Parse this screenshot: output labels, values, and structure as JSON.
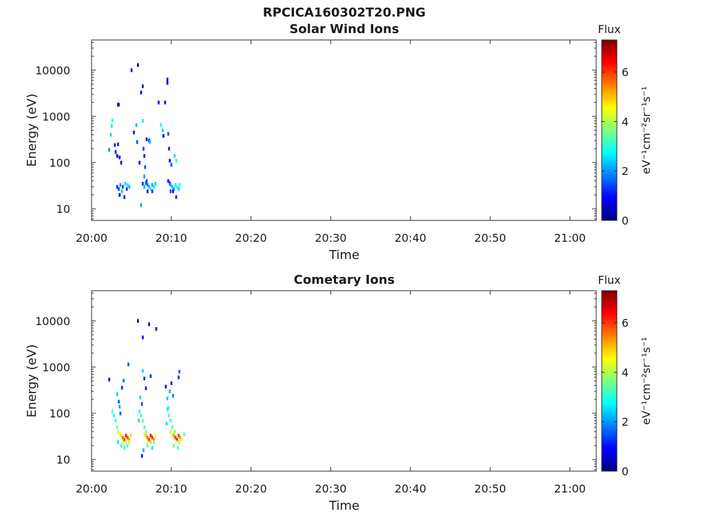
{
  "figure_title": "RPCICA160302T20.PNG",
  "colormap": [
    "#00007f",
    "#0000ff",
    "#007fff",
    "#00ffff",
    "#7fff7f",
    "#ffff00",
    "#ff7f00",
    "#ff0000",
    "#7f0000"
  ],
  "chart_data": [
    {
      "type": "heatmap",
      "title": "Solar Wind Ions",
      "xlabel": "Time",
      "ylabel": "Energy (eV)",
      "x_ticks": [
        "20:00",
        "20:10",
        "20:20",
        "20:30",
        "20:40",
        "20:50",
        "21:00"
      ],
      "xlim_minutes": [
        0,
        63.3
      ],
      "yscale": "log",
      "ylim": [
        5.6,
        45000
      ],
      "y_ticks": [
        10,
        100,
        1000,
        10000
      ],
      "y_tick_labels": [
        "10",
        "100",
        "1000",
        "10000"
      ],
      "colorbar": {
        "title": "Flux",
        "label": "eV⁻¹cm⁻²sr⁻¹s⁻¹",
        "range": [
          0,
          7.3
        ],
        "ticks": [
          0,
          2,
          4,
          6
        ],
        "tick_labels": [
          "0",
          "2",
          "4",
          "6"
        ]
      },
      "grid": false,
      "cells": [
        [
          2.2,
          190,
          1.9
        ],
        [
          2.4,
          400,
          2.4
        ],
        [
          2.5,
          620,
          2.6
        ],
        [
          2.6,
          820,
          2.9
        ],
        [
          2.9,
          240,
          1.2
        ],
        [
          3.0,
          170,
          1.0
        ],
        [
          3.3,
          250,
          1.2
        ],
        [
          3.2,
          140,
          0.8
        ],
        [
          3.5,
          130,
          0.9
        ],
        [
          3.4,
          1800,
          1.0
        ],
        [
          3.7,
          100,
          0.9
        ],
        [
          3.3,
          1800,
          0.8
        ],
        [
          3.2,
          30,
          1.3
        ],
        [
          3.4,
          27,
          1.5
        ],
        [
          3.6,
          33,
          2.0
        ],
        [
          3.8,
          24,
          2.3
        ],
        [
          3.9,
          30,
          1.4
        ],
        [
          4.2,
          35,
          2.4
        ],
        [
          4.5,
          33,
          2.6
        ],
        [
          4.7,
          30,
          2.2
        ],
        [
          3.5,
          20,
          1.0
        ],
        [
          4.1,
          18,
          1.1
        ],
        [
          4.4,
          27,
          1.3
        ],
        [
          5.0,
          10000,
          0.6
        ],
        [
          5.3,
          450,
          1.0
        ],
        [
          5.6,
          650,
          2.3
        ],
        [
          5.7,
          280,
          1.5
        ],
        [
          5.8,
          13000,
          0.7
        ],
        [
          6.0,
          100,
          0.9
        ],
        [
          6.2,
          3300,
          0.9
        ],
        [
          6.4,
          4500,
          1.0
        ],
        [
          6.4,
          800,
          2.6
        ],
        [
          6.5,
          200,
          1.3
        ],
        [
          6.6,
          140,
          1.0
        ],
        [
          6.7,
          80,
          1.5
        ],
        [
          6.6,
          50,
          2.0
        ],
        [
          6.9,
          320,
          1.0
        ],
        [
          7.2,
          300,
          1.2
        ],
        [
          7.3,
          280,
          2.3
        ],
        [
          8.4,
          2000,
          1.0
        ],
        [
          8.7,
          650,
          2.8
        ],
        [
          8.9,
          500,
          2.4
        ],
        [
          9.2,
          2000,
          1.0
        ],
        [
          9.0,
          380,
          1.0
        ],
        [
          6.2,
          12,
          2.0
        ],
        [
          6.4,
          35,
          1.2
        ],
        [
          6.6,
          30,
          2.2
        ],
        [
          6.8,
          36,
          1.5
        ],
        [
          7.0,
          33,
          1.8
        ],
        [
          7.2,
          30,
          2.4
        ],
        [
          7.4,
          27,
          2.6
        ],
        [
          7.6,
          33,
          2.2
        ],
        [
          7.8,
          30,
          2.6
        ],
        [
          8.0,
          35,
          2.4
        ],
        [
          7.0,
          24,
          1.0
        ],
        [
          7.6,
          24,
          1.3
        ],
        [
          6.9,
          40,
          1.4
        ],
        [
          9.5,
          6300,
          0.6
        ],
        [
          9.5,
          5300,
          0.8
        ],
        [
          9.6,
          420,
          1.5
        ],
        [
          9.7,
          200,
          1.1
        ],
        [
          9.8,
          110,
          1.0
        ],
        [
          10.0,
          90,
          1.5
        ],
        [
          10.4,
          140,
          2.5
        ],
        [
          10.6,
          110,
          2.8
        ],
        [
          9.6,
          40,
          1.1
        ],
        [
          9.8,
          36,
          1.3
        ],
        [
          9.9,
          33,
          2.1
        ],
        [
          10.1,
          30,
          2.4
        ],
        [
          10.3,
          27,
          2.0
        ],
        [
          10.5,
          33,
          2.7
        ],
        [
          10.7,
          30,
          3.0
        ],
        [
          10.9,
          27,
          2.4
        ],
        [
          11.0,
          33,
          2.8
        ],
        [
          10.2,
          24,
          1.0
        ],
        [
          10.6,
          18,
          1.2
        ],
        [
          9.9,
          24,
          1.4
        ]
      ]
    },
    {
      "type": "heatmap",
      "title": "Cometary Ions",
      "xlabel": "Time",
      "ylabel": "Energy (eV)",
      "x_ticks": [
        "20:00",
        "20:10",
        "20:20",
        "20:30",
        "20:40",
        "20:50",
        "21:00"
      ],
      "xlim_minutes": [
        0,
        63.3
      ],
      "yscale": "log",
      "ylim": [
        5.6,
        45000
      ],
      "y_ticks": [
        10,
        100,
        1000,
        10000
      ],
      "y_tick_labels": [
        "10",
        "100",
        "1000",
        "10000"
      ],
      "colorbar": {
        "title": "Flux",
        "label": "eV⁻¹cm⁻²sr⁻¹s⁻¹",
        "range": [
          0,
          7.3
        ],
        "ticks": [
          0,
          2,
          4,
          6
        ],
        "tick_labels": [
          "0",
          "2",
          "4",
          "6"
        ]
      },
      "grid": false,
      "cells": [
        [
          2.2,
          540,
          1.0
        ],
        [
          2.6,
          110,
          3.2
        ],
        [
          2.8,
          90,
          3.0
        ],
        [
          3.0,
          70,
          3.1
        ],
        [
          3.2,
          50,
          3.4
        ],
        [
          3.2,
          260,
          2.4
        ],
        [
          3.4,
          180,
          1.6
        ],
        [
          3.5,
          140,
          2.0
        ],
        [
          3.6,
          100,
          1.6
        ],
        [
          3.8,
          360,
          1.2
        ],
        [
          4.0,
          510,
          1.8
        ],
        [
          4.6,
          1150,
          1.6
        ],
        [
          3.3,
          40,
          4.0
        ],
        [
          3.5,
          35,
          4.6
        ],
        [
          3.7,
          33,
          4.8
        ],
        [
          3.9,
          30,
          5.6
        ],
        [
          4.1,
          27,
          6.0
        ],
        [
          4.3,
          33,
          6.3
        ],
        [
          4.5,
          30,
          5.9
        ],
        [
          4.7,
          27,
          5.4
        ],
        [
          4.9,
          33,
          4.8
        ],
        [
          3.9,
          24,
          4.2
        ],
        [
          4.3,
          24,
          4.6
        ],
        [
          4.7,
          24,
          4.0
        ],
        [
          3.7,
          20,
          3.0
        ],
        [
          4.1,
          18,
          2.8
        ],
        [
          4.5,
          20,
          3.4
        ],
        [
          3.3,
          24,
          2.6
        ],
        [
          5.8,
          10000,
          0.7
        ],
        [
          6.4,
          4400,
          1.0
        ],
        [
          6.4,
          830,
          2.4
        ],
        [
          6.6,
          570,
          1.2
        ],
        [
          6.8,
          350,
          1.1
        ],
        [
          6.1,
          220,
          2.4
        ],
        [
          6.3,
          160,
          1.4
        ],
        [
          6.0,
          110,
          3.0
        ],
        [
          6.2,
          90,
          3.2
        ],
        [
          6.4,
          70,
          3.4
        ],
        [
          6.6,
          50,
          3.3
        ],
        [
          6.8,
          40,
          3.6
        ],
        [
          5.9,
          70,
          2.5
        ],
        [
          6.6,
          35,
          4.4
        ],
        [
          6.8,
          33,
          5.0
        ],
        [
          7.0,
          30,
          5.6
        ],
        [
          7.2,
          27,
          6.0
        ],
        [
          7.4,
          33,
          6.4
        ],
        [
          7.6,
          30,
          6.1
        ],
        [
          7.8,
          27,
          5.5
        ],
        [
          8.0,
          33,
          4.5
        ],
        [
          7.0,
          24,
          4.4
        ],
        [
          7.4,
          24,
          5.0
        ],
        [
          7.8,
          24,
          3.6
        ],
        [
          6.3,
          12,
          1.0
        ],
        [
          6.5,
          16,
          2.2
        ],
        [
          7.0,
          20,
          3.2
        ],
        [
          7.6,
          18,
          2.6
        ],
        [
          7.2,
          8500,
          0.8
        ],
        [
          7.4,
          640,
          1.2
        ],
        [
          8.1,
          6700,
          0.9
        ],
        [
          9.3,
          380,
          1.0
        ],
        [
          9.5,
          210,
          2.3
        ],
        [
          9.6,
          130,
          2.6
        ],
        [
          9.5,
          120,
          3.0
        ],
        [
          9.7,
          90,
          3.2
        ],
        [
          9.9,
          70,
          3.1
        ],
        [
          10.1,
          50,
          3.4
        ],
        [
          9.4,
          60,
          2.5
        ],
        [
          9.8,
          300,
          2.2
        ],
        [
          10.0,
          450,
          1.0
        ],
        [
          10.2,
          240,
          1.8
        ],
        [
          10.9,
          600,
          1.3
        ],
        [
          11.0,
          800,
          1.5
        ],
        [
          10.4,
          40,
          3.6
        ],
        [
          9.9,
          40,
          4.2
        ],
        [
          10.1,
          35,
          4.6
        ],
        [
          10.3,
          33,
          5.2
        ],
        [
          10.5,
          30,
          5.9
        ],
        [
          10.7,
          27,
          6.3
        ],
        [
          10.9,
          33,
          6.0
        ],
        [
          11.1,
          30,
          5.3
        ],
        [
          11.3,
          27,
          4.4
        ],
        [
          11.6,
          35,
          3.2
        ],
        [
          10.6,
          24,
          4.6
        ],
        [
          11.0,
          24,
          3.8
        ],
        [
          10.3,
          20,
          3.4
        ],
        [
          10.8,
          18,
          3.0
        ]
      ]
    }
  ]
}
